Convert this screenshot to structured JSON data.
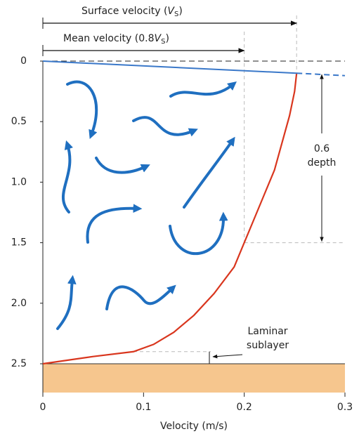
{
  "chart_data": {
    "type": "line",
    "xlabel": "Velocity (m/s)",
    "xlim": [
      0,
      0.3
    ],
    "xticks": [
      0,
      0.1,
      0.2,
      0.3
    ],
    "ylim": [
      0,
      2.5
    ],
    "yticks": [
      0,
      0.5,
      {
        "value": 1,
        "label": "1.0"
      },
      1.5,
      {
        "value": 2,
        "label": "2.0"
      },
      2.5
    ],
    "series": [
      {
        "color": "#d9361e",
        "x": [
          0,
          0.05,
          0.09,
          0.11,
          0.13,
          0.15,
          0.17,
          0.19,
          0.2,
          0.21,
          0.22,
          0.23,
          0.24,
          0.245,
          0.25,
          0.252
        ],
        "values": [
          2.5,
          2.44,
          2.4,
          2.34,
          2.24,
          2.1,
          1.92,
          1.7,
          1.5,
          1.3,
          1.1,
          0.9,
          0.6,
          0.45,
          0.25,
          0.1
        ]
      },
      {
        "color": "#3a78c9",
        "x": [
          0,
          0.252,
          0.3
        ],
        "values": [
          0,
          0.1,
          0.12
        ]
      }
    ],
    "surface_velocity": 0.252,
    "mean_velocity": 0.2,
    "annotations": {
      "surface": {
        "text": "Surface velocity (",
        "symbol": "V",
        "subscript": "S",
        "close": ")"
      },
      "mean": {
        "text": "Mean velocity (0.8",
        "symbol": "V",
        "subscript": "S",
        "close": ")"
      },
      "depth_label": [
        "0.6",
        "depth"
      ],
      "laminar_label": [
        "Laminar",
        "sublayer"
      ]
    },
    "depth_marker": [
      0.1,
      1.5
    ],
    "laminar_depth": [
      2.4,
      2.5
    ]
  }
}
